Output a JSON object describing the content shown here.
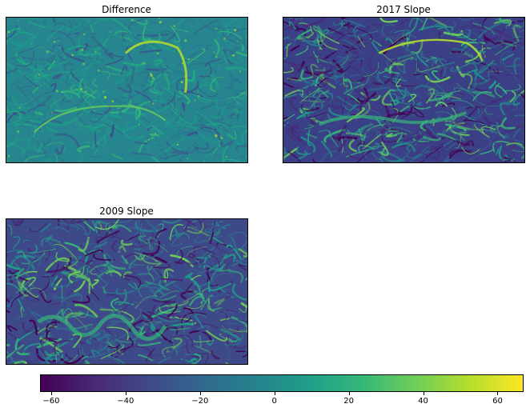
{
  "chart_data": [
    {
      "type": "heatmap",
      "title": "Difference",
      "value_range": [
        -63,
        67
      ],
      "xticks": [],
      "yticks": [],
      "pattern": "mostly near-zero teal with scattered bright green-yellow edges"
    },
    {
      "type": "heatmap",
      "title": "2017 Slope",
      "value_range": [
        -63,
        67
      ],
      "xticks": [],
      "yticks": [],
      "pattern": "dark purple to green terrain texture with bright ridge at top"
    },
    {
      "type": "heatmap",
      "title": "2009 Slope",
      "value_range": [
        -63,
        67
      ],
      "xticks": [],
      "yticks": [],
      "pattern": "dark purple to green terrain texture with winding channel"
    }
  ],
  "colorbar": {
    "cmap": "viridis",
    "vmin": -63,
    "vmax": 67,
    "orientation": "horizontal",
    "ticks": [
      -60,
      -40,
      -20,
      0,
      20,
      40,
      60
    ],
    "tick_labels": [
      "−60",
      "−40",
      "−20",
      "0",
      "20",
      "40",
      "60"
    ]
  },
  "colors": {
    "viridis_stops": [
      "#440154",
      "#482878",
      "#3e4989",
      "#31688e",
      "#26828e",
      "#1f9e89",
      "#35b779",
      "#6ece58",
      "#b5de2b",
      "#fde725"
    ]
  }
}
